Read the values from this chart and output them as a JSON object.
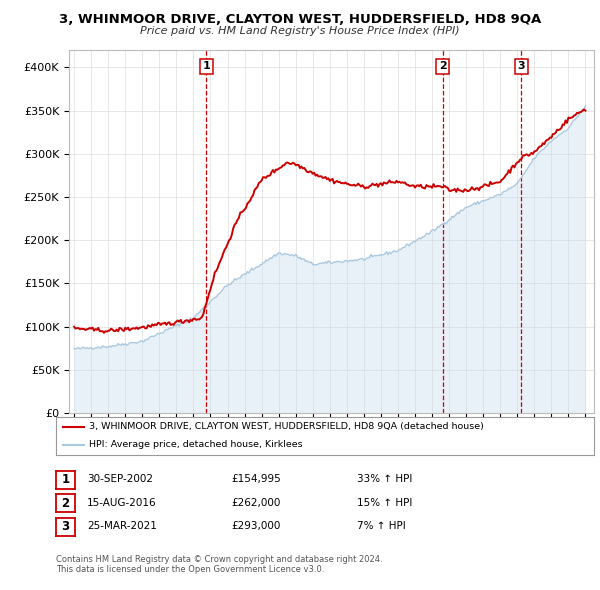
{
  "title": "3, WHINMOOR DRIVE, CLAYTON WEST, HUDDERSFIELD, HD8 9QA",
  "subtitle": "Price paid vs. HM Land Registry's House Price Index (HPI)",
  "background_color": "#ffffff",
  "plot_bg_color": "#ffffff",
  "grid_color": "#dddddd",
  "hpi_color": "#aac8e0",
  "hpi_fill_color": "#cce0f0",
  "price_color": "#cc0000",
  "dashed_color": "#cc0000",
  "transactions": [
    {
      "num": 1,
      "date": "30-SEP-2002",
      "price": "£154,995",
      "pct": "33%",
      "dir": "↑",
      "x": 2002.75
    },
    {
      "num": 2,
      "date": "15-AUG-2016",
      "price": "£262,000",
      "pct": "15%",
      "dir": "↑",
      "x": 2016.62
    },
    {
      "num": 3,
      "date": "25-MAR-2021",
      "price": "£293,000",
      "pct": "7%",
      "dir": "↑",
      "x": 2021.23
    }
  ],
  "legend_line1": "3, WHINMOOR DRIVE, CLAYTON WEST, HUDDERSFIELD, HD8 9QA (detached house)",
  "legend_line2": "HPI: Average price, detached house, Kirklees",
  "footer1": "Contains HM Land Registry data © Crown copyright and database right 2024.",
  "footer2": "This data is licensed under the Open Government Licence v3.0.",
  "ylim": [
    0,
    420000
  ],
  "xlim_start": 1994.7,
  "xlim_end": 2025.5,
  "yticks": [
    0,
    50000,
    100000,
    150000,
    200000,
    250000,
    300000,
    350000,
    400000
  ],
  "ytick_labels": [
    "£0",
    "£50K",
    "£100K",
    "£150K",
    "£200K",
    "£250K",
    "£300K",
    "£350K",
    "£400K"
  ],
  "xticks": [
    1995,
    1996,
    1997,
    1998,
    1999,
    2000,
    2001,
    2002,
    2003,
    2004,
    2005,
    2006,
    2007,
    2008,
    2009,
    2010,
    2011,
    2012,
    2013,
    2014,
    2015,
    2016,
    2017,
    2018,
    2019,
    2020,
    2021,
    2022,
    2023,
    2024,
    2025
  ]
}
